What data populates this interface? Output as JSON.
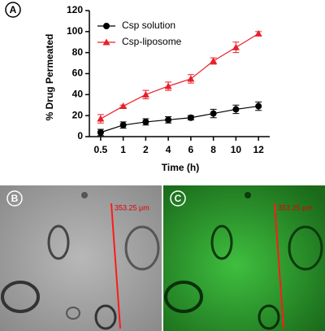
{
  "chart_data": {
    "type": "line",
    "panel_label": "A",
    "x_label": "Time (h)",
    "y_label": "% Drug Permeated",
    "categories": [
      "0.5",
      "1",
      "2",
      "4",
      "6",
      "8",
      "10",
      "12"
    ],
    "ylim": [
      0,
      120
    ],
    "yticks": [
      0,
      20,
      40,
      60,
      80,
      100,
      120
    ],
    "legend": "upper left",
    "series": [
      {
        "name": "Csp solution",
        "color": "#000000",
        "marker": "circle",
        "values": [
          4,
          11,
          14,
          16,
          18,
          22,
          26,
          29
        ],
        "errors": [
          3,
          3,
          3,
          3,
          2,
          4,
          4,
          4
        ]
      },
      {
        "name": "Csp-liposome",
        "color": "#e8202a",
        "marker": "triangle",
        "values": [
          17,
          29,
          40,
          48,
          55,
          72,
          85,
          98
        ],
        "errors": [
          4,
          1,
          4,
          4,
          4,
          3,
          5,
          2
        ]
      }
    ]
  },
  "panels": [
    {
      "label": "B",
      "scale": "353.25 μm"
    },
    {
      "label": "C",
      "scale": "353.25 μm"
    }
  ]
}
